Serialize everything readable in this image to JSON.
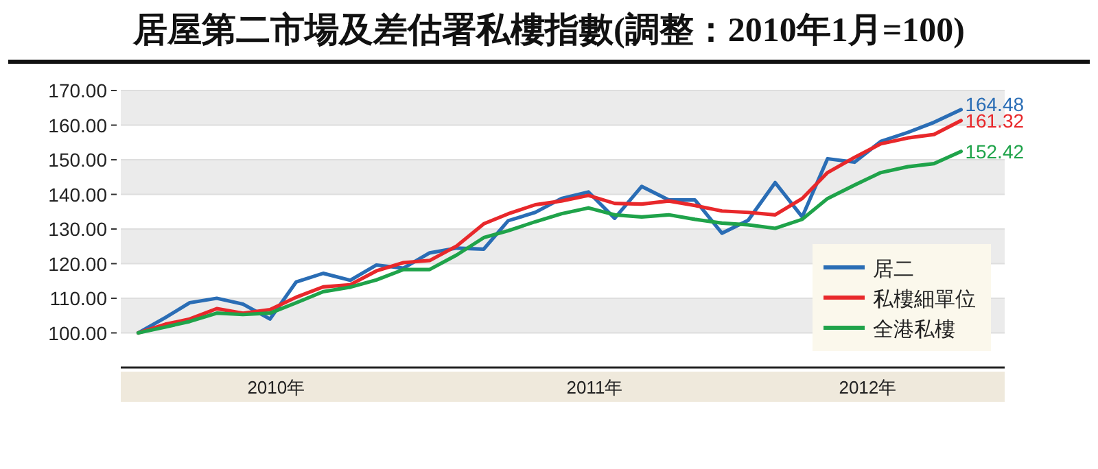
{
  "chart_data": {
    "type": "line",
    "title": "居屋第二市場及差估署私樓指數(調整：2010年1月=100)",
    "x": [
      "2010-01",
      "2010-02",
      "2010-03",
      "2010-04",
      "2010-05",
      "2010-06",
      "2010-07",
      "2010-08",
      "2010-09",
      "2010-10",
      "2010-11",
      "2010-12",
      "2011-01",
      "2011-02",
      "2011-03",
      "2011-04",
      "2011-05",
      "2011-06",
      "2011-07",
      "2011-08",
      "2011-09",
      "2011-10",
      "2011-11",
      "2011-12",
      "2012-01",
      "2012-02",
      "2012-03",
      "2012-04",
      "2012-05",
      "2012-06",
      "2012-07",
      "2012-08"
    ],
    "series": [
      {
        "name": "居二",
        "color": "#2a6db5",
        "values": [
          100,
          104.4,
          108.7,
          110,
          108.3,
          104,
          114.7,
          117.2,
          115.2,
          119.6,
          118.7,
          123.1,
          124.5,
          124.2,
          132.4,
          134.8,
          138.8,
          140.7,
          133.1,
          142.3,
          138.4,
          138.4,
          128.8,
          132.5,
          143.4,
          133.5,
          150.3,
          149.3,
          155.3,
          157.9,
          160.8,
          164.48
        ],
        "value_labels": [
          null,
          null,
          null,
          null,
          null,
          null,
          null,
          null,
          null,
          null,
          null,
          null,
          null,
          null,
          null,
          null,
          null,
          null,
          null,
          null,
          null,
          null,
          null,
          null,
          null,
          null,
          null,
          null,
          null,
          null,
          null,
          "164.48"
        ]
      },
      {
        "name": "私樓細單位",
        "color": "#e8282b",
        "values": [
          100,
          102.5,
          104,
          107,
          105.7,
          106.7,
          110.3,
          113.3,
          113.9,
          117.9,
          120.3,
          120.9,
          125.1,
          131.5,
          134.4,
          137,
          138.1,
          139.7,
          137.4,
          137.2,
          138.1,
          136.8,
          135.2,
          134.8,
          134.1,
          138.8,
          146.3,
          150.7,
          154.6,
          156.3,
          157.3,
          161.32
        ],
        "value_labels": [
          null,
          null,
          null,
          null,
          null,
          null,
          null,
          null,
          null,
          null,
          null,
          null,
          null,
          null,
          null,
          null,
          null,
          null,
          null,
          null,
          null,
          null,
          null,
          null,
          null,
          null,
          null,
          null,
          null,
          null,
          null,
          "161.32"
        ]
      },
      {
        "name": "全港私樓",
        "color": "#1fa34a",
        "values": [
          100,
          101.7,
          103.3,
          105.7,
          105.3,
          105.7,
          108.7,
          111.9,
          113.2,
          115.3,
          118.3,
          118.3,
          122.5,
          127.5,
          129.5,
          132.1,
          134.4,
          136.1,
          134.1,
          133.5,
          134.1,
          132.8,
          131.7,
          131.2,
          130.2,
          132.8,
          138.8,
          142.7,
          146.3,
          148,
          148.9,
          152.42
        ],
        "value_labels": [
          null,
          null,
          null,
          null,
          null,
          null,
          null,
          null,
          null,
          null,
          null,
          null,
          null,
          null,
          null,
          null,
          null,
          null,
          null,
          null,
          null,
          null,
          null,
          null,
          null,
          null,
          null,
          null,
          null,
          null,
          null,
          "152.42"
        ]
      }
    ],
    "xlim": [
      "2009-12-12",
      "2012-09-20"
    ],
    "xticks": [
      {
        "value": "2010-06-08",
        "label": "2010年"
      },
      {
        "value": "2011-06-08",
        "label": "2011年"
      },
      {
        "value": "2012-04-16",
        "label": "2012年"
      }
    ],
    "ylim": [
      90,
      170
    ],
    "yticks": [
      {
        "value": 100,
        "label": "100.00"
      },
      {
        "value": 110,
        "label": "110.00"
      },
      {
        "value": 120,
        "label": "120.00"
      },
      {
        "value": 130,
        "label": "130.00"
      },
      {
        "value": 140,
        "label": "140.00"
      },
      {
        "value": 150,
        "label": "150.00"
      },
      {
        "value": 160,
        "label": "160.00"
      },
      {
        "value": 170,
        "label": "170.00"
      }
    ],
    "grid": "y",
    "legend": "bottom right",
    "marker": "none",
    "line_style": "solid"
  }
}
